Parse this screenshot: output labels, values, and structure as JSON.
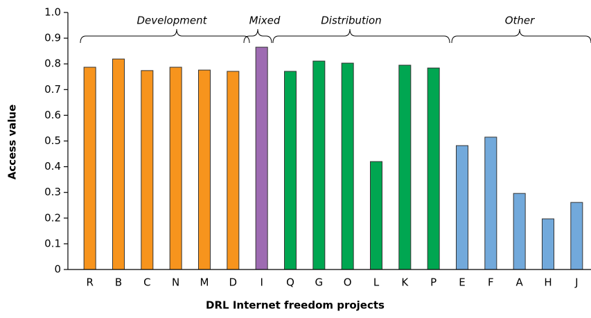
{
  "chart_data": {
    "type": "bar",
    "x_label": "DRL Internet freedom projects",
    "y_label": "Access value",
    "annotations": [
      "Development",
      "Mixed",
      "Distribution",
      "Other"
    ],
    "categories": [
      "R",
      "B",
      "C",
      "N",
      "M",
      "D",
      "I",
      "Q",
      "G",
      "O",
      "L",
      "K",
      "P",
      "E",
      "F",
      "A",
      "H",
      "J"
    ],
    "values": [
      0.787,
      0.819,
      0.774,
      0.787,
      0.776,
      0.771,
      0.865,
      0.771,
      0.811,
      0.803,
      0.42,
      0.795,
      0.784,
      0.482,
      0.515,
      0.296,
      0.197,
      0.261
    ],
    "colors": [
      "#f7941d",
      "#f7941d",
      "#f7941d",
      "#f7941d",
      "#f7941d",
      "#f7941d",
      "#9e6bb2",
      "#00a651",
      "#00a651",
      "#00a651",
      "#00a651",
      "#00a651",
      "#00a651",
      "#72a9db",
      "#72a9db",
      "#72a9db",
      "#72a9db",
      "#72a9db"
    ],
    "ylim": [
      0,
      1
    ],
    "yticks": [
      0,
      0.1,
      0.2,
      0.3,
      0.4,
      0.5,
      0.6,
      0.7,
      0.8,
      0.9,
      {
        "value": 1,
        "label": "1.0"
      }
    ]
  }
}
